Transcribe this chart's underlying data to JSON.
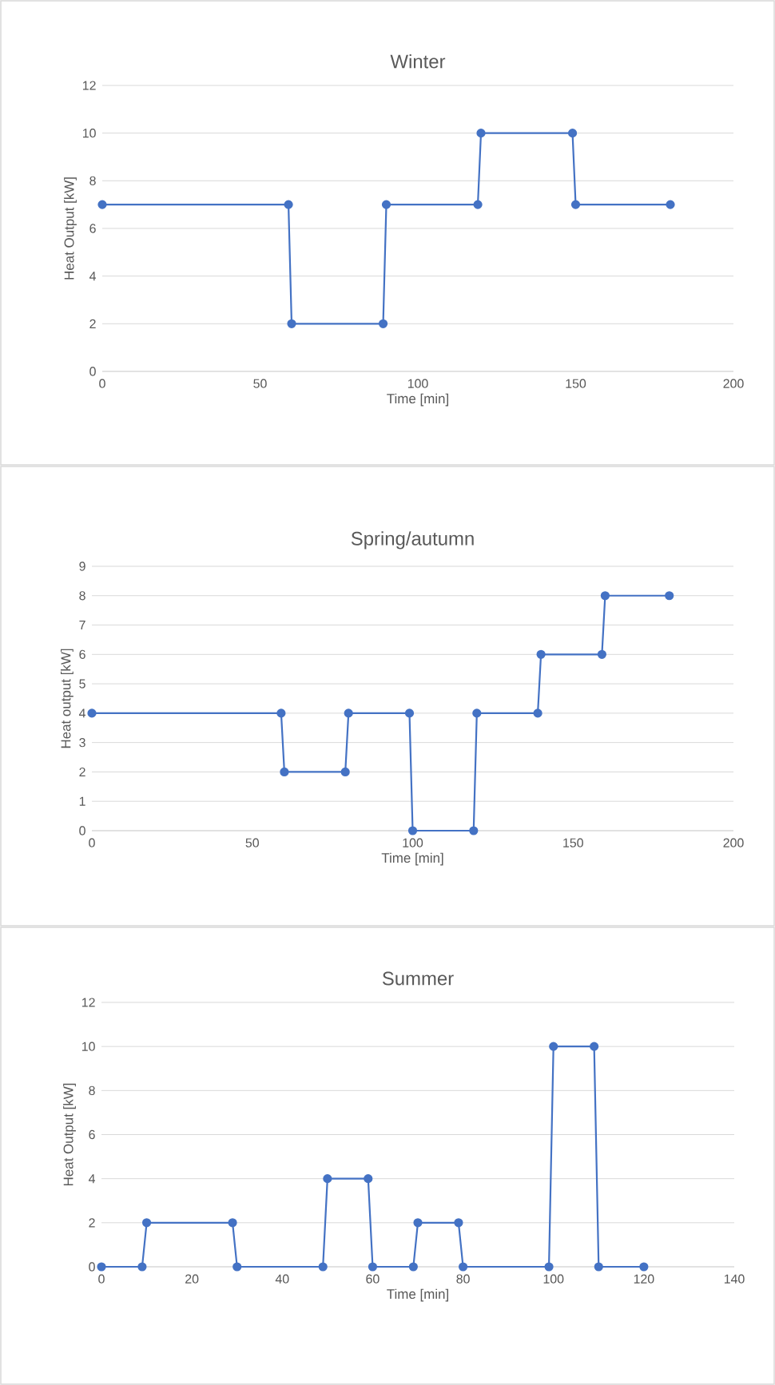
{
  "chart_data": [
    {
      "type": "line",
      "title": "Winter",
      "xlabel": "Time [min]",
      "ylabel": "Heat Output [kW]",
      "color": "#4472c4",
      "marker": "circle",
      "grid": "y",
      "x": [
        0,
        59,
        60,
        89,
        90,
        119,
        120,
        149,
        150,
        180
      ],
      "values": [
        7,
        7,
        2,
        2,
        7,
        7,
        10,
        10,
        7,
        7
      ],
      "xlim": [
        0,
        200
      ],
      "ylim": [
        0,
        12
      ],
      "xticks": [
        0,
        50,
        100,
        150,
        200
      ],
      "yticks": [
        0,
        2,
        4,
        6,
        8,
        10,
        12
      ]
    },
    {
      "type": "line",
      "title": "Spring/autumn",
      "xlabel": "Time [min]",
      "ylabel": "Heat  output [kW]",
      "color": "#4472c4",
      "marker": "circle",
      "grid": "y",
      "x": [
        0,
        59,
        60,
        79,
        80,
        99,
        100,
        119,
        120,
        139,
        140,
        159,
        160,
        180
      ],
      "values": [
        4,
        4,
        2,
        2,
        4,
        4,
        0,
        0,
        4,
        4,
        6,
        6,
        8,
        8
      ],
      "xlim": [
        0,
        200
      ],
      "ylim": [
        0,
        9
      ],
      "xticks": [
        0,
        50,
        100,
        150,
        200
      ],
      "yticks": [
        0,
        1,
        2,
        3,
        4,
        5,
        6,
        7,
        8,
        9
      ]
    },
    {
      "type": "line",
      "title": "Summer",
      "xlabel": "Time [min]",
      "ylabel": "Heat Output [kW]",
      "color": "#4472c4",
      "marker": "circle",
      "grid": "y",
      "x": [
        0,
        9,
        10,
        29,
        30,
        49,
        50,
        59,
        60,
        69,
        70,
        79,
        80,
        99,
        100,
        109,
        110,
        120
      ],
      "values": [
        0,
        0,
        2,
        2,
        0,
        0,
        4,
        4,
        0,
        0,
        2,
        2,
        0,
        0,
        10,
        10,
        0,
        0
      ],
      "xlim": [
        0,
        140
      ],
      "ylim": [
        0,
        12
      ],
      "xticks": [
        0,
        20,
        40,
        60,
        80,
        100,
        120,
        140
      ],
      "yticks": [
        0,
        2,
        4,
        6,
        8,
        10,
        12
      ]
    }
  ]
}
